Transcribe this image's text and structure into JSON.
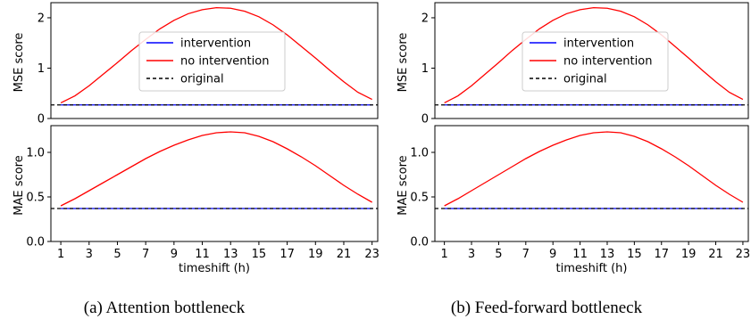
{
  "chart_data": [
    {
      "type": "line",
      "caption": "(a) Attention bottleneck",
      "x": [
        1,
        2,
        3,
        4,
        5,
        6,
        7,
        8,
        9,
        10,
        11,
        12,
        13,
        14,
        15,
        16,
        17,
        18,
        19,
        20,
        21,
        22,
        23
      ],
      "xticks": [
        1,
        3,
        5,
        7,
        9,
        11,
        13,
        15,
        17,
        19,
        21,
        23
      ],
      "xlabel": "timeshift (h)",
      "legend": {
        "position": "upper-center",
        "entries": [
          "intervention",
          "no intervention",
          "original"
        ]
      },
      "panels": [
        {
          "ylabel": "MSE score",
          "ylim": [
            0,
            2.3
          ],
          "yticks": [
            0,
            1,
            2
          ],
          "ytick_labels": [
            "0",
            "1",
            "2"
          ],
          "show_legend": true,
          "series": [
            {
              "name": "intervention",
              "color": "#0000ff",
              "style": "solid",
              "values": [
                0.27,
                0.27,
                0.27,
                0.27,
                0.27,
                0.27,
                0.27,
                0.27,
                0.27,
                0.27,
                0.27,
                0.27,
                0.27,
                0.27,
                0.27,
                0.27,
                0.27,
                0.27,
                0.27,
                0.27,
                0.27,
                0.27,
                0.27
              ]
            },
            {
              "name": "no intervention",
              "color": "#ff0000",
              "style": "solid",
              "values": [
                0.31,
                0.45,
                0.65,
                0.88,
                1.11,
                1.35,
                1.57,
                1.78,
                1.95,
                2.08,
                2.16,
                2.2,
                2.19,
                2.13,
                2.02,
                1.86,
                1.66,
                1.43,
                1.2,
                0.96,
                0.73,
                0.52,
                0.38
              ]
            },
            {
              "name": "original",
              "color": "#000000",
              "style": "dashed",
              "values": [
                0.27
              ]
            }
          ]
        },
        {
          "ylabel": "MAE score",
          "ylim": [
            0,
            1.3
          ],
          "yticks": [
            0,
            0.5,
            1.0
          ],
          "ytick_labels": [
            "0.0",
            "0.5",
            "1.0"
          ],
          "show_legend": false,
          "series": [
            {
              "name": "intervention",
              "color": "#0000ff",
              "style": "solid",
              "values": [
                0.37,
                0.37,
                0.37,
                0.37,
                0.37,
                0.37,
                0.37,
                0.37,
                0.37,
                0.37,
                0.37,
                0.37,
                0.37,
                0.37,
                0.37,
                0.37,
                0.37,
                0.37,
                0.37,
                0.37,
                0.37,
                0.37,
                0.37
              ]
            },
            {
              "name": "no intervention",
              "color": "#ff0000",
              "style": "solid",
              "values": [
                0.4,
                0.48,
                0.57,
                0.66,
                0.75,
                0.84,
                0.93,
                1.01,
                1.08,
                1.14,
                1.19,
                1.22,
                1.23,
                1.22,
                1.18,
                1.12,
                1.04,
                0.95,
                0.85,
                0.74,
                0.63,
                0.53,
                0.44
              ]
            },
            {
              "name": "original",
              "color": "#000000",
              "style": "dashed",
              "values": [
                0.37
              ]
            }
          ]
        }
      ]
    },
    {
      "type": "line",
      "caption": "(b) Feed-forward bottleneck",
      "x": [
        1,
        2,
        3,
        4,
        5,
        6,
        7,
        8,
        9,
        10,
        11,
        12,
        13,
        14,
        15,
        16,
        17,
        18,
        19,
        20,
        21,
        22,
        23
      ],
      "xticks": [
        1,
        3,
        5,
        7,
        9,
        11,
        13,
        15,
        17,
        19,
        21,
        23
      ],
      "xlabel": "timeshift (h)",
      "legend": {
        "position": "upper-center",
        "entries": [
          "intervention",
          "no intervention",
          "original"
        ]
      },
      "panels": [
        {
          "ylabel": "MSE score",
          "ylim": [
            0,
            2.3
          ],
          "yticks": [
            0,
            1,
            2
          ],
          "ytick_labels": [
            "0",
            "1",
            "2"
          ],
          "show_legend": true,
          "series": [
            {
              "name": "intervention",
              "color": "#0000ff",
              "style": "solid",
              "values": [
                0.27,
                0.27,
                0.27,
                0.27,
                0.27,
                0.27,
                0.27,
                0.27,
                0.27,
                0.27,
                0.27,
                0.27,
                0.27,
                0.27,
                0.27,
                0.27,
                0.27,
                0.27,
                0.27,
                0.27,
                0.27,
                0.27,
                0.27
              ]
            },
            {
              "name": "no intervention",
              "color": "#ff0000",
              "style": "solid",
              "values": [
                0.31,
                0.45,
                0.65,
                0.88,
                1.11,
                1.35,
                1.57,
                1.78,
                1.95,
                2.08,
                2.16,
                2.2,
                2.19,
                2.13,
                2.02,
                1.86,
                1.66,
                1.43,
                1.2,
                0.96,
                0.73,
                0.52,
                0.38
              ]
            },
            {
              "name": "original",
              "color": "#000000",
              "style": "dashed",
              "values": [
                0.27
              ]
            }
          ]
        },
        {
          "ylabel": "MAE score",
          "ylim": [
            0,
            1.3
          ],
          "yticks": [
            0,
            0.5,
            1.0
          ],
          "ytick_labels": [
            "0.0",
            "0.5",
            "1.0"
          ],
          "show_legend": false,
          "series": [
            {
              "name": "intervention",
              "color": "#0000ff",
              "style": "solid",
              "values": [
                0.37,
                0.37,
                0.37,
                0.37,
                0.37,
                0.37,
                0.37,
                0.37,
                0.37,
                0.37,
                0.37,
                0.37,
                0.37,
                0.37,
                0.37,
                0.37,
                0.37,
                0.37,
                0.37,
                0.37,
                0.37,
                0.37,
                0.37
              ]
            },
            {
              "name": "no intervention",
              "color": "#ff0000",
              "style": "solid",
              "values": [
                0.4,
                0.48,
                0.57,
                0.66,
                0.75,
                0.84,
                0.93,
                1.01,
                1.08,
                1.14,
                1.19,
                1.22,
                1.23,
                1.22,
                1.18,
                1.12,
                1.04,
                0.95,
                0.85,
                0.74,
                0.63,
                0.53,
                0.44
              ]
            },
            {
              "name": "original",
              "color": "#000000",
              "style": "dashed",
              "values": [
                0.37
              ]
            }
          ]
        }
      ]
    }
  ]
}
